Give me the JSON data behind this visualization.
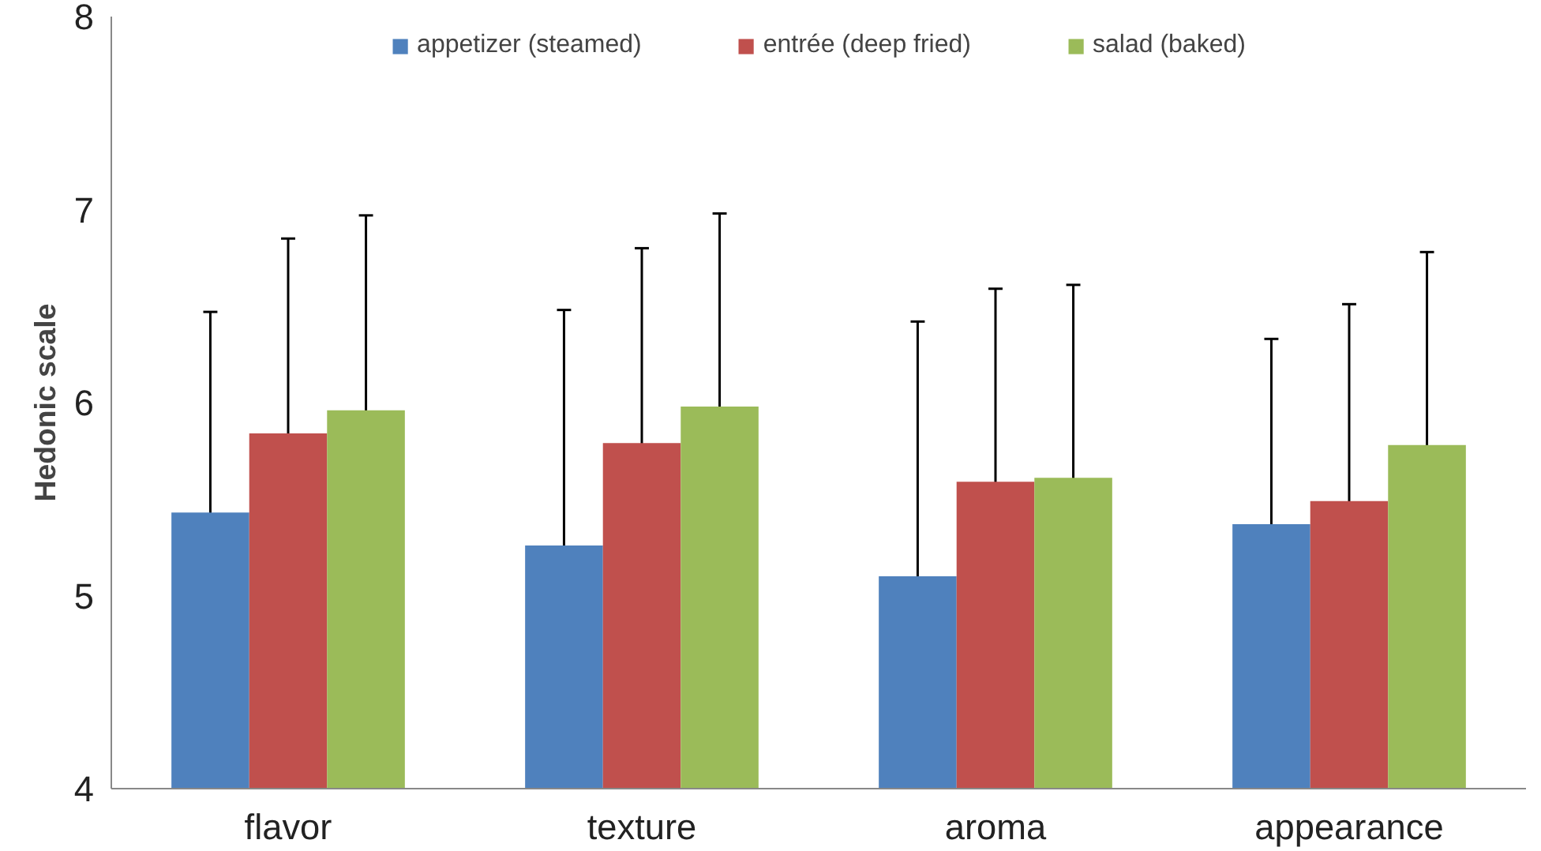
{
  "chart_data": {
    "type": "bar",
    "ylabel": "Hedonic scale",
    "categories": [
      "flavor",
      "texture",
      "aroma",
      "appearance"
    ],
    "series": [
      {
        "name": "appetizer (steamed)",
        "color": "#4f81bd",
        "values": [
          5.43,
          5.26,
          5.1,
          5.37
        ],
        "errors": [
          1.04,
          1.22,
          1.32,
          0.96
        ]
      },
      {
        "name": "entrée (deep fried)",
        "color": "#c0504d",
        "values": [
          5.84,
          5.79,
          5.59,
          5.49
        ],
        "errors": [
          1.01,
          1.01,
          1.0,
          1.02
        ]
      },
      {
        "name": "salad (baked)",
        "color": "#9bbb59",
        "values": [
          5.96,
          5.98,
          5.61,
          5.78
        ],
        "errors": [
          1.01,
          1.0,
          1.0,
          1.0
        ]
      }
    ],
    "ylim": [
      4,
      8
    ],
    "yticks": [
      4,
      5,
      6,
      7,
      8
    ],
    "grid": false,
    "legend": "top"
  }
}
